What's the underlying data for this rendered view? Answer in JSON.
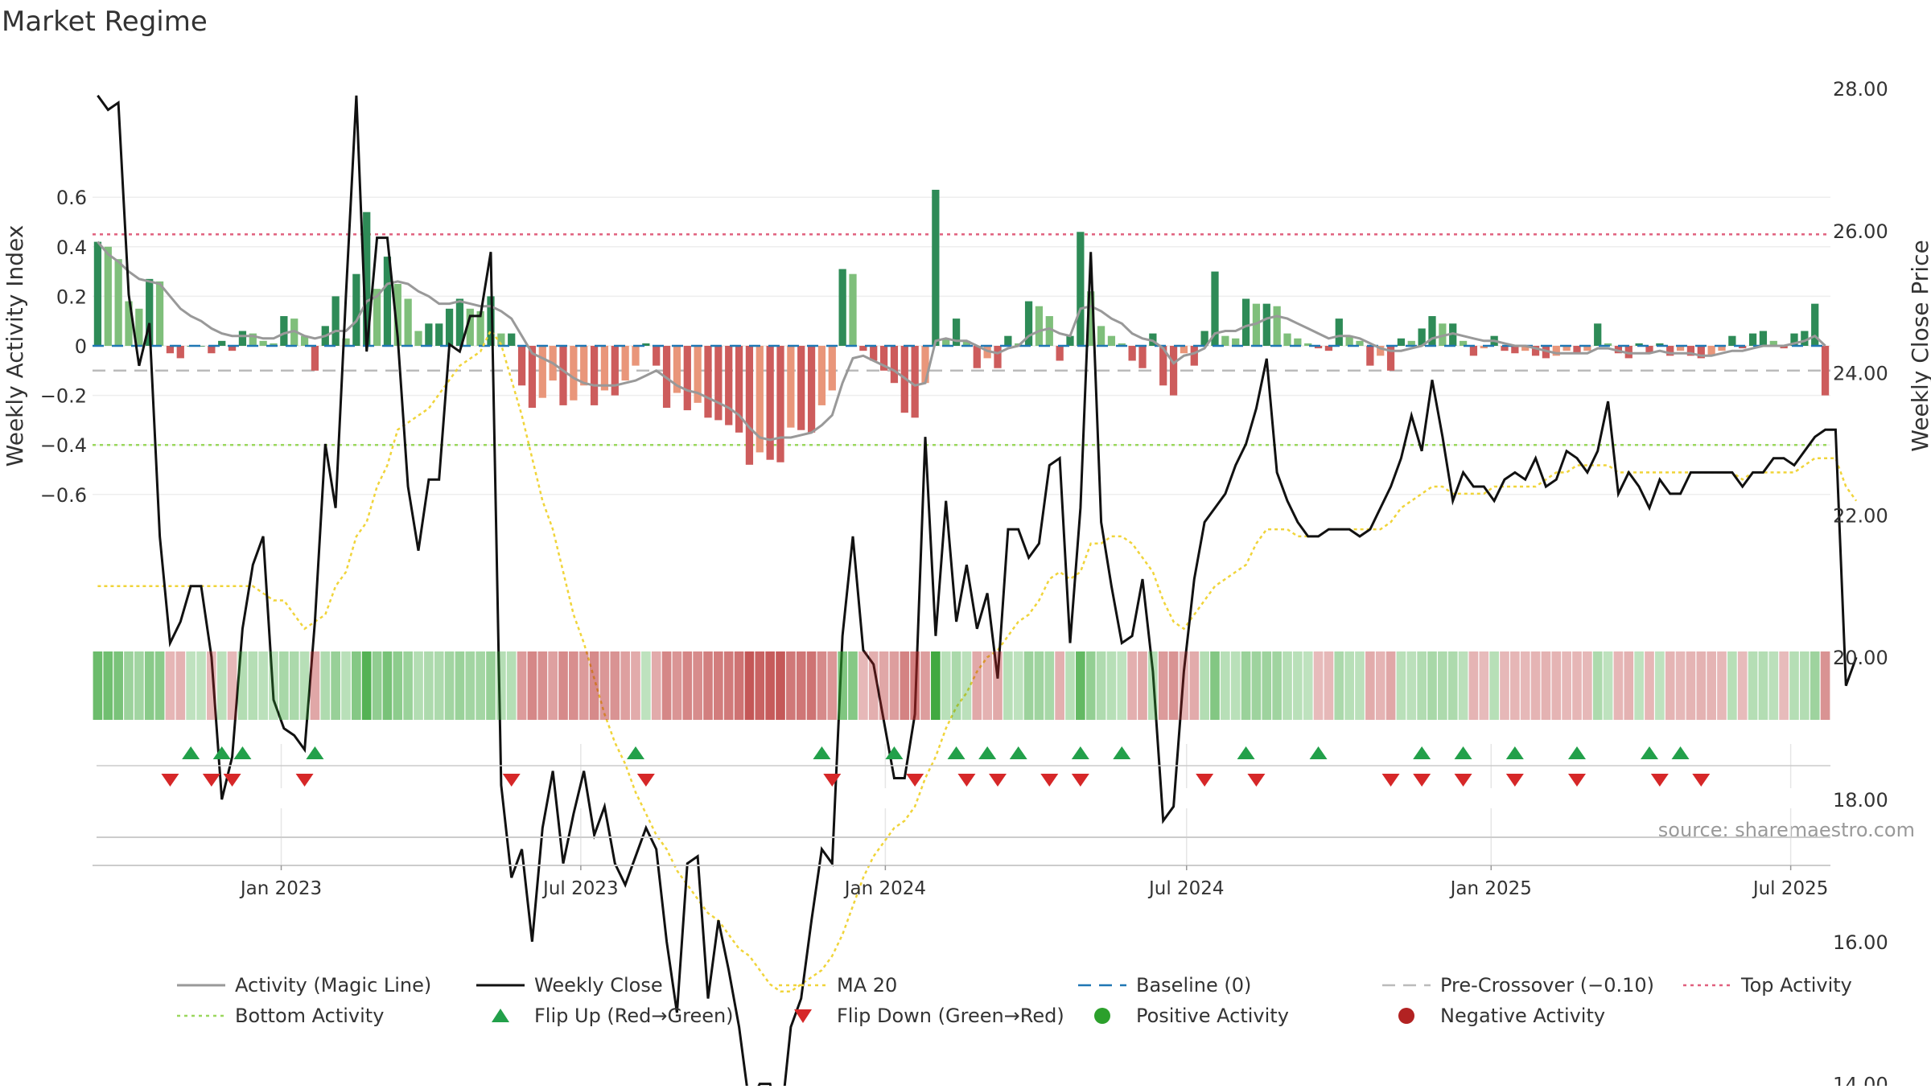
{
  "chart_data": {
    "type": "bar",
    "title": "Market Regime",
    "ylabel": "Weekly Activity Index",
    "y2label": "Weekly Close Price",
    "source": "source: sharemaestro.com",
    "ylim": [
      -0.68,
      0.64
    ],
    "y2lim": [
      12.8,
      28.7
    ],
    "yticks": [
      0.6,
      0.4,
      0.2,
      0,
      -0.2,
      -0.4,
      -0.6
    ],
    "ytick_labels": [
      "0.6",
      "0.4",
      "0.2",
      "0",
      "−0.2",
      "−0.4",
      "−0.6"
    ],
    "y2ticks": [
      28,
      26,
      24,
      22,
      20,
      18,
      16,
      14
    ],
    "y2tick_labels": [
      "28.00",
      "26.00",
      "24.00",
      "22.00",
      "20.00",
      "18.00",
      "16.00",
      "14.00"
    ],
    "x_start": "2022-09-09",
    "x_end": "2025-07-25",
    "xticks": [
      "2023-01-01",
      "2023-07-01",
      "2024-01-01",
      "2024-07-01",
      "2025-01-01",
      "2025-07-01"
    ],
    "xtick_labels": [
      "Jan 2023",
      "Jul 2023",
      "Jan 2024",
      "Jul 2024",
      "Jan 2025",
      "Jul 2025"
    ],
    "grid": true,
    "legend_position": "bottom",
    "reference_lines": {
      "top_activity": 0.45,
      "bottom_activity": -0.4,
      "pre_crossover": -0.1,
      "baseline": 0
    },
    "colors": {
      "pos_strong": "#2e8b57",
      "pos_light": "#7fbf7b",
      "neg_strong": "#cd5c5c",
      "neg_light": "#e9967a",
      "activity_line": "#999999",
      "close_line": "#111111",
      "ma20": "#f0d43a",
      "baseline": "#1f77b4",
      "pre_crossover": "#bbbbbb",
      "top_activity": "#e0607e",
      "bottom_activity": "#9bd85e",
      "flip_up": "#22a04a",
      "flip_down": "#d62728",
      "positive_dot": "#2ca02c",
      "negative_dot": "#b22222"
    },
    "activity_bars": [
      0.42,
      0.4,
      0.35,
      0.18,
      0.15,
      0.27,
      0.26,
      -0.03,
      -0.05,
      0,
      0,
      -0.03,
      0.02,
      -0.02,
      0.06,
      0.05,
      0.02,
      0.01,
      0.12,
      0.11,
      0.04,
      -0.1,
      0.08,
      0.2,
      0.03,
      0.29,
      0.54,
      0.23,
      0.36,
      0.25,
      0.19,
      0.06,
      0.09,
      0.09,
      0.15,
      0.19,
      0.15,
      0.14,
      0.2,
      0.05,
      0.05,
      -0.16,
      -0.25,
      -0.21,
      -0.14,
      -0.24,
      -0.22,
      -0.16,
      -0.24,
      -0.18,
      -0.2,
      -0.14,
      -0.08,
      0.01,
      -0.08,
      -0.25,
      -0.19,
      -0.26,
      -0.23,
      -0.29,
      -0.3,
      -0.32,
      -0.35,
      -0.48,
      -0.43,
      -0.46,
      -0.47,
      -0.33,
      -0.34,
      -0.35,
      -0.24,
      -0.18,
      0.31,
      0.29,
      -0.02,
      -0.06,
      -0.1,
      -0.15,
      -0.27,
      -0.29,
      -0.15,
      0.63,
      0.03,
      0.11,
      0.02,
      -0.09,
      -0.05,
      -0.09,
      0.04,
      0.01,
      0.18,
      0.16,
      0.12,
      -0.06,
      0.04,
      0.46,
      0.22,
      0.08,
      0.04,
      0.01,
      -0.06,
      -0.09,
      0.05,
      -0.16,
      -0.2,
      -0.03,
      -0.08,
      0.06,
      0.3,
      0.04,
      0.03,
      0.19,
      0.17,
      0.17,
      0.16,
      0.05,
      0.03,
      0.01,
      -0.01,
      -0.02,
      0.11,
      0.04,
      0.02,
      -0.08,
      -0.04,
      -0.1,
      0.03,
      0.02,
      0.07,
      0.12,
      0.09,
      0.09,
      0.02,
      -0.04,
      -0.01,
      0.04,
      -0.02,
      -0.03,
      -0.02,
      -0.04,
      -0.05,
      -0.04,
      -0.02,
      -0.03,
      -0.02,
      0.09,
      0.01,
      -0.03,
      -0.05,
      0.01,
      -0.03,
      0.01,
      -0.04,
      -0.02,
      -0.04,
      -0.05,
      -0.04,
      -0.02,
      0.04,
      -0.01,
      0.05,
      0.06,
      0.02,
      -0.01,
      0.05,
      0.06,
      0.17,
      -0.2
    ],
    "activity_line": [
      0.42,
      0.37,
      0.34,
      0.3,
      0.27,
      0.26,
      0.25,
      0.2,
      0.15,
      0.12,
      0.1,
      0.07,
      0.05,
      0.04,
      0.04,
      0.04,
      0.03,
      0.03,
      0.05,
      0.06,
      0.04,
      0.03,
      0.04,
      0.06,
      0.06,
      0.1,
      0.18,
      0.2,
      0.25,
      0.26,
      0.25,
      0.22,
      0.2,
      0.17,
      0.17,
      0.18,
      0.17,
      0.16,
      0.16,
      0.14,
      0.11,
      0.04,
      -0.03,
      -0.05,
      -0.07,
      -0.1,
      -0.13,
      -0.15,
      -0.16,
      -0.16,
      -0.16,
      -0.15,
      -0.14,
      -0.12,
      -0.1,
      -0.13,
      -0.16,
      -0.18,
      -0.19,
      -0.21,
      -0.23,
      -0.25,
      -0.28,
      -0.33,
      -0.37,
      -0.38,
      -0.37,
      -0.37,
      -0.36,
      -0.35,
      -0.32,
      -0.28,
      -0.15,
      -0.05,
      -0.04,
      -0.06,
      -0.08,
      -0.1,
      -0.13,
      -0.16,
      -0.15,
      0.02,
      0.03,
      0.02,
      0.02,
      0.0,
      -0.02,
      -0.03,
      -0.01,
      0.0,
      0.04,
      0.06,
      0.07,
      0.05,
      0.04,
      0.15,
      0.16,
      0.14,
      0.11,
      0.09,
      0.05,
      0.03,
      0.02,
      -0.01,
      -0.07,
      -0.04,
      -0.03,
      -0.01,
      0.05,
      0.06,
      0.06,
      0.08,
      0.09,
      0.11,
      0.12,
      0.11,
      0.09,
      0.07,
      0.05,
      0.03,
      0.04,
      0.04,
      0.03,
      0.01,
      -0.01,
      -0.02,
      -0.02,
      -0.01,
      0.0,
      0.03,
      0.04,
      0.05,
      0.04,
      0.03,
      0.02,
      0.02,
      0.01,
      0.0,
      0.0,
      -0.01,
      -0.02,
      -0.03,
      -0.03,
      -0.03,
      -0.03,
      -0.01,
      -0.01,
      -0.02,
      -0.03,
      -0.03,
      -0.03,
      -0.02,
      -0.03,
      -0.03,
      -0.03,
      -0.04,
      -0.04,
      -0.03,
      -0.02,
      -0.02,
      -0.01,
      0.0,
      0.0,
      0.0,
      0.01,
      0.02,
      0.04,
      0.0
    ],
    "weekly_close": [
      27.9,
      27.7,
      27.8,
      25.1,
      24.1,
      24.7,
      21.7,
      20.2,
      20.5,
      21.0,
      21.0,
      20.0,
      18.0,
      18.6,
      20.4,
      21.3,
      21.7,
      19.4,
      19.0,
      18.9,
      18.7,
      20.5,
      23.0,
      22.1,
      25.1,
      27.9,
      24.3,
      25.9,
      25.9,
      24.5,
      22.4,
      21.5,
      22.5,
      22.5,
      24.4,
      24.3,
      24.8,
      24.8,
      25.7,
      18.2,
      16.9,
      17.3,
      16.0,
      17.6,
      18.4,
      17.1,
      17.8,
      18.4,
      17.5,
      17.9,
      17.1,
      16.8,
      17.2,
      17.6,
      17.3,
      16.0,
      15.0,
      17.1,
      17.2,
      15.2,
      16.3,
      15.6,
      14.8,
      13.7,
      14.0,
      14.0,
      13.4,
      14.8,
      15.2,
      16.3,
      17.3,
      17.1,
      20.3,
      21.7,
      20.1,
      19.9,
      19.1,
      18.3,
      18.3,
      19.2,
      23.1,
      20.3,
      22.2,
      20.5,
      21.3,
      20.4,
      20.9,
      19.7,
      21.8,
      21.8,
      21.4,
      21.6,
      22.7,
      22.8,
      20.2,
      22.1,
      25.7,
      21.9,
      21.0,
      20.2,
      20.3,
      21.1,
      19.8,
      17.7,
      17.9,
      19.8,
      21.1,
      21.9,
      22.1,
      22.3,
      22.7,
      23.0,
      23.5,
      24.2,
      22.6,
      22.2,
      21.9,
      21.7,
      21.7,
      21.8,
      21.8,
      21.8,
      21.7,
      21.8,
      22.1,
      22.4,
      22.8,
      23.4,
      22.9,
      23.9,
      23.1,
      22.2,
      22.6,
      22.4,
      22.4,
      22.2,
      22.5,
      22.6,
      22.5,
      22.8,
      22.4,
      22.5,
      22.9,
      22.8,
      22.6,
      22.9,
      23.6,
      22.3,
      22.6,
      22.4,
      22.1,
      22.5,
      22.3,
      22.3,
      22.6,
      22.6,
      22.6,
      22.6,
      22.6,
      22.4,
      22.6,
      22.6,
      22.8,
      22.8,
      22.7,
      22.9,
      23.1,
      23.2,
      23.2,
      19.6,
      20.0
    ],
    "ma20": [
      21.0,
      21.0,
      21.0,
      21.0,
      21.0,
      21.0,
      21.0,
      21.0,
      21.0,
      21.0,
      21.0,
      21.0,
      21.0,
      21.0,
      21.0,
      21.0,
      20.9,
      20.8,
      20.8,
      20.6,
      20.4,
      20.5,
      20.6,
      21.0,
      21.2,
      21.7,
      21.9,
      22.4,
      22.7,
      23.2,
      23.3,
      23.4,
      23.5,
      23.7,
      23.9,
      24.1,
      24.2,
      24.3,
      24.6,
      24.4,
      23.9,
      23.4,
      22.8,
      22.2,
      21.8,
      21.2,
      20.6,
      20.2,
      19.7,
      19.2,
      18.8,
      18.5,
      18.1,
      17.8,
      17.5,
      17.3,
      17.0,
      16.8,
      16.6,
      16.4,
      16.3,
      16.1,
      15.9,
      15.8,
      15.6,
      15.4,
      15.3,
      15.3,
      15.4,
      15.5,
      15.6,
      15.8,
      16.1,
      16.5,
      16.9,
      17.2,
      17.4,
      17.6,
      17.7,
      17.9,
      18.3,
      18.6,
      19.0,
      19.3,
      19.5,
      19.8,
      20.0,
      20.1,
      20.3,
      20.5,
      20.6,
      20.8,
      21.1,
      21.2,
      21.1,
      21.2,
      21.6,
      21.6,
      21.7,
      21.7,
      21.6,
      21.4,
      21.2,
      20.8,
      20.5,
      20.4,
      20.6,
      20.8,
      21.0,
      21.1,
      21.2,
      21.3,
      21.6,
      21.8,
      21.8,
      21.8,
      21.7,
      21.7,
      21.7,
      21.8,
      21.8,
      21.8,
      21.8,
      21.8,
      21.8,
      21.9,
      22.1,
      22.2,
      22.3,
      22.4,
      22.4,
      22.3,
      22.3,
      22.3,
      22.3,
      22.4,
      22.4,
      22.4,
      22.4,
      22.4,
      22.5,
      22.6,
      22.6,
      22.7,
      22.7,
      22.7,
      22.7,
      22.6,
      22.6,
      22.6,
      22.6,
      22.6,
      22.6,
      22.6,
      22.6,
      22.6,
      22.6,
      22.6,
      22.6,
      22.5,
      22.6,
      22.6,
      22.6,
      22.6,
      22.6,
      22.7,
      22.8,
      22.8,
      22.8,
      22.4,
      22.2
    ],
    "flip_up_weeks": [
      9,
      12,
      14,
      21,
      52,
      70,
      77,
      83,
      86,
      89,
      95,
      99,
      111,
      118,
      128,
      132,
      137,
      143,
      150,
      153
    ],
    "flip_down_weeks": [
      7,
      11,
      13,
      20,
      40,
      53,
      71,
      79,
      84,
      87,
      92,
      95,
      107,
      112,
      125,
      128,
      132,
      137,
      143,
      151,
      155
    ],
    "legend": [
      {
        "label": "Activity (Magic Line)",
        "kind": "line"
      },
      {
        "label": "Weekly Close",
        "kind": "line"
      },
      {
        "label": "MA 20",
        "kind": "dotted"
      },
      {
        "label": "Baseline (0)",
        "kind": "dashed"
      },
      {
        "label": "Pre-Crossover (−0.10)",
        "kind": "dashed"
      },
      {
        "label": "Top Activity",
        "kind": "dotted"
      },
      {
        "label": "Bottom Activity",
        "kind": "dotted"
      },
      {
        "label": "Flip Up (Red→Green)",
        "kind": "triangle-up"
      },
      {
        "label": "Flip Down (Green→Red)",
        "kind": "triangle-down"
      },
      {
        "label": "Positive Activity",
        "kind": "dot"
      },
      {
        "label": "Negative Activity",
        "kind": "dot"
      }
    ]
  }
}
